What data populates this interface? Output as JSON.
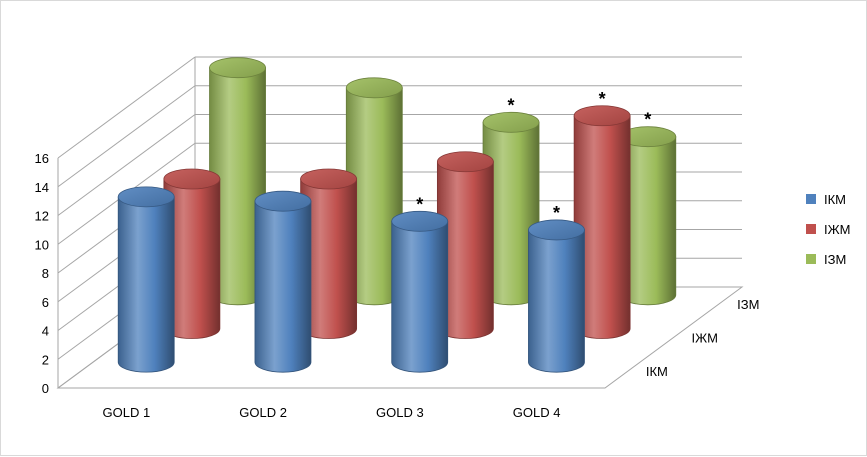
{
  "chart_data": {
    "type": "bar",
    "style": "3d-cylinder",
    "categories": [
      "GOLD 1",
      "GOLD 2",
      "GOLD 3",
      "GOLD 4"
    ],
    "series": [
      {
        "name": "ІКМ",
        "values": [
          11.5,
          11.2,
          9.8,
          9.2
        ],
        "color": "#4f81bd",
        "marked": [
          false,
          false,
          true,
          true
        ]
      },
      {
        "name": "ІЖМ",
        "values": [
          10.4,
          10.4,
          11.6,
          14.8
        ],
        "color": "#c0504d",
        "marked": [
          false,
          false,
          false,
          true
        ]
      },
      {
        "name": "ІЗМ",
        "values": [
          15.8,
          14.4,
          12.0,
          11.0
        ],
        "color": "#9bbb59",
        "marked": [
          false,
          false,
          true,
          true
        ]
      }
    ],
    "significance_marker": "*",
    "yticks": [
      "0",
      "2",
      "4",
      "6",
      "8",
      "10",
      "12",
      "14",
      "16"
    ],
    "ylim": [
      0,
      16
    ],
    "depth_labels": [
      "ІКМ",
      "ІЖМ",
      "ІЗМ"
    ],
    "legend": {
      "position": "right",
      "entries": [
        "ІКМ",
        "ІЖМ",
        "ІЗМ"
      ]
    },
    "grid": true,
    "title": "",
    "xlabel": "",
    "ylabel": ""
  }
}
